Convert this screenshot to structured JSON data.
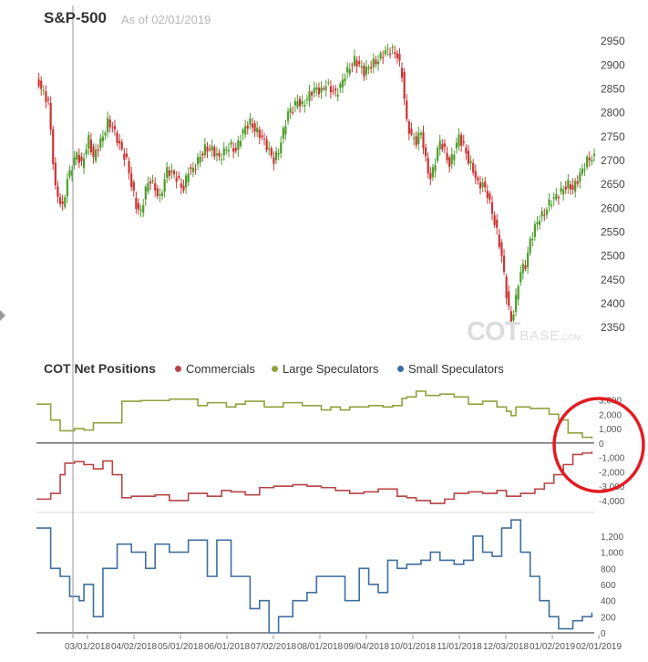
{
  "header": {
    "title": "S&P-500",
    "as_of": "As of 02/01/2019"
  },
  "cot_title": "COT Net Positions",
  "legend": [
    {
      "name": "Commercials",
      "color": "#b84444"
    },
    {
      "name": "Large Speculators",
      "color": "#8ea33c"
    },
    {
      "name": "Small Speculators",
      "color": "#3e6f9c"
    }
  ],
  "watermark": {
    "main": "COT",
    "sub": "BASE",
    "suffix": ".COM"
  },
  "colors": {
    "up": "#4d9e2c",
    "down": "#cc3333",
    "circle": "#e31b23",
    "cursor": "#9a9a9a"
  },
  "annotation": "red circle highlighting the latest Large/Small Speculator and Commercial net positions",
  "chart_data": [
    {
      "type": "candlestick",
      "title": "S&P-500",
      "ylim": [
        2310,
        2960
      ],
      "yticks": [
        2350,
        2400,
        2450,
        2500,
        2550,
        2600,
        2650,
        2700,
        2750,
        2800,
        2850,
        2900,
        2950
      ],
      "x_labels": [
        "03/01/2018",
        "04/02/2018",
        "05/01/2018",
        "06/01/2018",
        "07/02/2018",
        "08/01/2018",
        "09/04/2018",
        "10/01/2018",
        "11/01/2018",
        "12/03/2018",
        "01/02/2019",
        "02/01/2019"
      ],
      "close": [
        [
          0,
          2873
        ],
        [
          3,
          2840
        ],
        [
          5,
          2822
        ],
        [
          8,
          2640
        ],
        [
          11,
          2600
        ],
        [
          13,
          2660
        ],
        [
          17,
          2715
        ],
        [
          19,
          2690
        ],
        [
          22,
          2745
        ],
        [
          24,
          2705
        ],
        [
          26,
          2730
        ],
        [
          28,
          2750
        ],
        [
          30,
          2780
        ],
        [
          32,
          2770
        ],
        [
          34,
          2745
        ],
        [
          36,
          2720
        ],
        [
          38,
          2700
        ],
        [
          40,
          2650
        ],
        [
          42,
          2605
        ],
        [
          44,
          2590
        ],
        [
          46,
          2640
        ],
        [
          48,
          2660
        ],
        [
          50,
          2640
        ],
        [
          52,
          2620
        ],
        [
          55,
          2680
        ],
        [
          58,
          2670
        ],
        [
          60,
          2655
        ],
        [
          62,
          2640
        ],
        [
          64,
          2680
        ],
        [
          66,
          2680
        ],
        [
          68,
          2700
        ],
        [
          71,
          2725
        ],
        [
          74,
          2723
        ],
        [
          77,
          2705
        ],
        [
          80,
          2725
        ],
        [
          82,
          2730
        ],
        [
          84,
          2720
        ],
        [
          86,
          2750
        ],
        [
          88,
          2770
        ],
        [
          90,
          2780
        ],
        [
          92,
          2765
        ],
        [
          94,
          2755
        ],
        [
          96,
          2740
        ],
        [
          98,
          2720
        ],
        [
          100,
          2700
        ],
        [
          102,
          2720
        ],
        [
          104,
          2760
        ],
        [
          106,
          2800
        ],
        [
          108,
          2810
        ],
        [
          110,
          2825
        ],
        [
          112,
          2815
        ],
        [
          114,
          2830
        ],
        [
          116,
          2845
        ],
        [
          118,
          2850
        ],
        [
          120,
          2845
        ],
        [
          122,
          2860
        ],
        [
          124,
          2850
        ],
        [
          126,
          2840
        ],
        [
          128,
          2855
        ],
        [
          130,
          2880
        ],
        [
          132,
          2895
        ],
        [
          134,
          2910
        ],
        [
          136,
          2900
        ],
        [
          138,
          2885
        ],
        [
          140,
          2895
        ],
        [
          142,
          2905
        ],
        [
          144,
          2910
        ],
        [
          146,
          2925
        ],
        [
          148,
          2930
        ],
        [
          150,
          2930
        ],
        [
          152,
          2920
        ],
        [
          154,
          2880
        ],
        [
          156,
          2780
        ],
        [
          158,
          2750
        ],
        [
          160,
          2740
        ],
        [
          162,
          2760
        ],
        [
          164,
          2700
        ],
        [
          166,
          2660
        ],
        [
          168,
          2700
        ],
        [
          170,
          2740
        ],
        [
          172,
          2720
        ],
        [
          174,
          2690
        ],
        [
          176,
          2720
        ],
        [
          178,
          2750
        ],
        [
          180,
          2730
        ],
        [
          182,
          2700
        ],
        [
          184,
          2680
        ],
        [
          186,
          2650
        ],
        [
          188,
          2650
        ],
        [
          190,
          2630
        ],
        [
          192,
          2590
        ],
        [
          194,
          2550
        ],
        [
          196,
          2500
        ],
        [
          198,
          2420
        ],
        [
          200,
          2360
        ],
        [
          202,
          2410
        ],
        [
          204,
          2470
        ],
        [
          206,
          2480
        ],
        [
          208,
          2530
        ],
        [
          210,
          2560
        ],
        [
          212,
          2580
        ],
        [
          214,
          2590
        ],
        [
          216,
          2610
        ],
        [
          218,
          2620
        ],
        [
          220,
          2630
        ],
        [
          222,
          2640
        ],
        [
          224,
          2650
        ],
        [
          226,
          2640
        ],
        [
          228,
          2660
        ],
        [
          230,
          2680
        ],
        [
          232,
          2700
        ],
        [
          234,
          2706
        ]
      ],
      "x_count": 236
    },
    {
      "type": "line",
      "title": "COT Net Positions",
      "ylim": [
        -4700,
        3600
      ],
      "yticks": [
        -4000,
        -3000,
        -2000,
        -1000,
        0,
        1000,
        2000,
        3000
      ],
      "ytick_labels": [
        "-4,000",
        "-3,000",
        "-2,000",
        "-1,000",
        "0",
        "1,000",
        "2,000",
        "3,000"
      ],
      "x_count": 236,
      "series": [
        {
          "name": "Large Speculators",
          "color": "#8ea33c",
          "points": [
            [
              0,
              2700
            ],
            [
              4,
              2700
            ],
            [
              6,
              1600
            ],
            [
              10,
              850
            ],
            [
              16,
              1000
            ],
            [
              20,
              900
            ],
            [
              24,
              1400
            ],
            [
              36,
              2900
            ],
            [
              44,
              2950
            ],
            [
              56,
              3050
            ],
            [
              68,
              2600
            ],
            [
              72,
              2800
            ],
            [
              80,
              2500
            ],
            [
              84,
              2700
            ],
            [
              88,
              2900
            ],
            [
              96,
              2500
            ],
            [
              104,
              2800
            ],
            [
              112,
              2600
            ],
            [
              120,
              2300
            ],
            [
              124,
              2500
            ],
            [
              128,
              2300
            ],
            [
              132,
              2500
            ],
            [
              140,
              2600
            ],
            [
              146,
              2500
            ],
            [
              150,
              2600
            ],
            [
              154,
              3100
            ],
            [
              156,
              3200
            ],
            [
              160,
              3600
            ],
            [
              164,
              3300
            ],
            [
              170,
              3400
            ],
            [
              176,
              3200
            ],
            [
              182,
              2700
            ],
            [
              188,
              2900
            ],
            [
              194,
              2500
            ],
            [
              198,
              2200
            ],
            [
              200,
              1900
            ],
            [
              202,
              2500
            ],
            [
              208,
              2400
            ],
            [
              216,
              2000
            ],
            [
              220,
              1600
            ],
            [
              224,
              700
            ],
            [
              230,
              400
            ],
            [
              234,
              300
            ]
          ]
        },
        {
          "name": "Commercials",
          "color": "#b84444",
          "points": [
            [
              0,
              -3900
            ],
            [
              6,
              -3500
            ],
            [
              10,
              -2200
            ],
            [
              12,
              -1400
            ],
            [
              16,
              -1300
            ],
            [
              20,
              -1500
            ],
            [
              24,
              -1800
            ],
            [
              28,
              -1250
            ],
            [
              32,
              -2200
            ],
            [
              36,
              -3800
            ],
            [
              40,
              -3700
            ],
            [
              50,
              -3600
            ],
            [
              56,
              -4000
            ],
            [
              64,
              -3500
            ],
            [
              72,
              -3700
            ],
            [
              78,
              -3300
            ],
            [
              82,
              -3400
            ],
            [
              88,
              -3600
            ],
            [
              94,
              -3100
            ],
            [
              100,
              -3000
            ],
            [
              108,
              -2900
            ],
            [
              114,
              -3000
            ],
            [
              120,
              -3100
            ],
            [
              126,
              -3300
            ],
            [
              132,
              -3500
            ],
            [
              138,
              -3400
            ],
            [
              144,
              -3200
            ],
            [
              148,
              -3200
            ],
            [
              152,
              -3700
            ],
            [
              156,
              -3800
            ],
            [
              160,
              -4000
            ],
            [
              166,
              -4200
            ],
            [
              172,
              -3900
            ],
            [
              176,
              -3500
            ],
            [
              182,
              -3400
            ],
            [
              188,
              -3500
            ],
            [
              194,
              -3300
            ],
            [
              198,
              -3700
            ],
            [
              204,
              -3500
            ],
            [
              210,
              -3200
            ],
            [
              214,
              -2800
            ],
            [
              218,
              -2200
            ],
            [
              222,
              -1500
            ],
            [
              226,
              -800
            ],
            [
              230,
              -700
            ],
            [
              234,
              -600
            ]
          ]
        }
      ]
    },
    {
      "type": "line",
      "title": "Small Speculators",
      "ylim": [
        0,
        1380
      ],
      "yticks": [
        0,
        200,
        400,
        600,
        800,
        1000,
        1200
      ],
      "ytick_labels": [
        "0",
        "200",
        "400",
        "600",
        "800",
        "1,000",
        "1,200"
      ],
      "x_count": 236,
      "series": [
        {
          "name": "Small Speculators",
          "color": "#3e6f9c",
          "points": [
            [
              0,
              1300
            ],
            [
              4,
              1300
            ],
            [
              6,
              800
            ],
            [
              10,
              700
            ],
            [
              14,
              450
            ],
            [
              18,
              400
            ],
            [
              20,
              600
            ],
            [
              24,
              200
            ],
            [
              28,
              800
            ],
            [
              34,
              1100
            ],
            [
              40,
              1000
            ],
            [
              46,
              800
            ],
            [
              50,
              1100
            ],
            [
              56,
              1000
            ],
            [
              64,
              1150
            ],
            [
              72,
              700
            ],
            [
              76,
              1150
            ],
            [
              82,
              700
            ],
            [
              90,
              300
            ],
            [
              94,
              400
            ],
            [
              98,
              0
            ],
            [
              102,
              200
            ],
            [
              108,
              400
            ],
            [
              114,
              500
            ],
            [
              118,
              700
            ],
            [
              124,
              700
            ],
            [
              130,
              400
            ],
            [
              136,
              800
            ],
            [
              140,
              600
            ],
            [
              144,
              500
            ],
            [
              148,
              900
            ],
            [
              152,
              800
            ],
            [
              156,
              850
            ],
            [
              162,
              900
            ],
            [
              166,
              1000
            ],
            [
              170,
              900
            ],
            [
              176,
              850
            ],
            [
              180,
              900
            ],
            [
              184,
              1200
            ],
            [
              188,
              1000
            ],
            [
              192,
              950
            ],
            [
              196,
              1300
            ],
            [
              200,
              1400
            ],
            [
              204,
              1000
            ],
            [
              208,
              700
            ],
            [
              212,
              400
            ],
            [
              216,
              200
            ],
            [
              220,
              50
            ],
            [
              226,
              150
            ],
            [
              230,
              200
            ],
            [
              234,
              250
            ]
          ]
        }
      ]
    }
  ]
}
